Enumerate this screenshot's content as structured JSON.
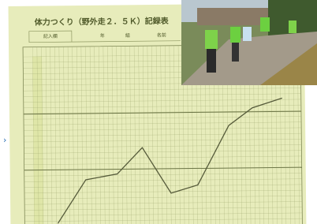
{
  "sheet": {
    "title": "体力つくり（野外走２．５Ｋ）記録表",
    "fields": [
      "記入欄",
      "年",
      "組",
      "名前"
    ]
  }
}
